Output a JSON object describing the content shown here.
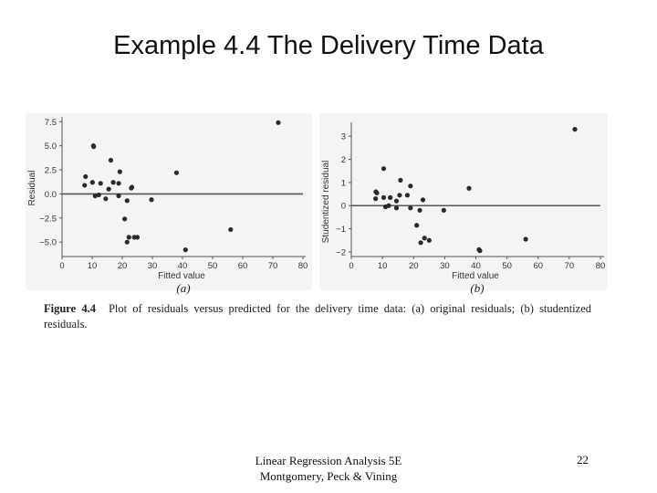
{
  "slide": {
    "title": "Example 4.4 The Delivery Time Data",
    "caption_label": "Figure 4.4",
    "caption_text": "Plot of residuals versus predicted for the delivery time data: (a) original residuals; (b) studentized residuals.",
    "footer_line1": "Linear Regression Analysis 5E",
    "footer_line2": "Montgomery, Peck & Vining",
    "page_number": "22"
  },
  "chart_data": [
    {
      "type": "scatter",
      "panel_label": "(a)",
      "xlabel": "Fitted value",
      "ylabel": "Residual",
      "xlim": [
        0,
        80
      ],
      "ylim": [
        -6.5,
        8
      ],
      "xticks": [
        "0",
        "10",
        "20",
        "30",
        "40",
        "50",
        "60",
        "70",
        "80"
      ],
      "yticks": [
        "7.5",
        "5.0",
        "2.5",
        "0.0",
        "−2.5",
        "−5.0"
      ],
      "ytick_values": [
        7.5,
        5.0,
        2.5,
        0.0,
        -2.5,
        -5.0
      ],
      "reference_line_y": 0,
      "points": [
        [
          71.8,
          7.4
        ],
        [
          10.4,
          5.0
        ],
        [
          10.5,
          4.9
        ],
        [
          16.2,
          3.5
        ],
        [
          19.2,
          2.3
        ],
        [
          38.0,
          2.2
        ],
        [
          7.8,
          1.8
        ],
        [
          10.1,
          1.2
        ],
        [
          12.8,
          1.1
        ],
        [
          17.0,
          1.2
        ],
        [
          18.8,
          1.1
        ],
        [
          7.5,
          0.9
        ],
        [
          15.5,
          0.5
        ],
        [
          23.0,
          0.6
        ],
        [
          23.2,
          0.7
        ],
        [
          11.0,
          -0.2
        ],
        [
          12.2,
          -0.1
        ],
        [
          14.5,
          -0.5
        ],
        [
          18.8,
          -0.2
        ],
        [
          21.6,
          -0.7
        ],
        [
          29.7,
          -0.6
        ],
        [
          20.8,
          -2.6
        ],
        [
          24.0,
          -4.5
        ],
        [
          22.2,
          -4.5
        ],
        [
          25.0,
          -4.5
        ],
        [
          21.6,
          -5.0
        ],
        [
          56.0,
          -3.7
        ],
        [
          41.0,
          -5.8
        ]
      ]
    },
    {
      "type": "scatter",
      "panel_label": "(b)",
      "xlabel": "Fitted value",
      "ylabel": "Studentized residual",
      "xlim": [
        0,
        80
      ],
      "ylim": [
        -2.2,
        3.6
      ],
      "xticks": [
        "0",
        "10",
        "20",
        "30",
        "40",
        "50",
        "60",
        "70",
        "80"
      ],
      "yticks": [
        "3",
        "2",
        "1",
        "0",
        "−1",
        "−2"
      ],
      "ytick_values": [
        3,
        2,
        1,
        0,
        -1,
        -2
      ],
      "reference_line_y": 0,
      "points": [
        [
          71.8,
          3.3
        ],
        [
          10.4,
          1.6
        ],
        [
          15.8,
          1.1
        ],
        [
          19.0,
          0.85
        ],
        [
          37.8,
          0.75
        ],
        [
          7.9,
          0.6
        ],
        [
          8.2,
          0.55
        ],
        [
          12.5,
          0.35
        ],
        [
          15.5,
          0.45
        ],
        [
          18.0,
          0.45
        ],
        [
          10.4,
          0.35
        ],
        [
          7.8,
          0.3
        ],
        [
          14.5,
          0.2
        ],
        [
          23.0,
          0.25
        ],
        [
          11.0,
          -0.05
        ],
        [
          12.0,
          0.0
        ],
        [
          14.5,
          -0.1
        ],
        [
          19.0,
          -0.1
        ],
        [
          22.0,
          -0.2
        ],
        [
          29.7,
          -0.2
        ],
        [
          21.0,
          -0.85
        ],
        [
          22.3,
          -1.6
        ],
        [
          23.5,
          -1.4
        ],
        [
          25.0,
          -1.5
        ],
        [
          56.0,
          -1.45
        ],
        [
          41.0,
          -1.9
        ],
        [
          41.3,
          -1.95
        ]
      ]
    }
  ]
}
